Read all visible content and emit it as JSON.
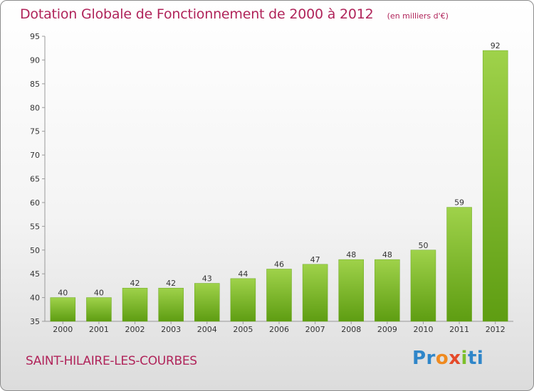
{
  "header": {
    "title": "Dotation Globale de Fonctionnement de 2000 à 2012",
    "subtitle": "(en milliers d'€)"
  },
  "footer": {
    "commune": "SAINT-HILAIRE-LES-COURBES",
    "logo_parts": [
      "Pr",
      "o",
      "x",
      "i",
      "ti"
    ]
  },
  "colors": {
    "bar_light": "#9fd24a",
    "bar_dark": "#5e9d12",
    "title": "#b0245a"
  },
  "chart_data": {
    "type": "bar",
    "title": "Dotation Globale de Fonctionnement de 2000 à 2012",
    "ylabel": "en milliers d'€",
    "categories": [
      "2000",
      "2001",
      "2002",
      "2003",
      "2004",
      "2005",
      "2006",
      "2007",
      "2008",
      "2009",
      "2010",
      "2011",
      "2012"
    ],
    "values": [
      40,
      40,
      42,
      42,
      43,
      44,
      46,
      47,
      48,
      48,
      50,
      59,
      92
    ],
    "ylim": [
      35,
      95
    ],
    "yticks": [
      35,
      40,
      45,
      50,
      55,
      60,
      65,
      70,
      75,
      80,
      85,
      90,
      95
    ],
    "grid": false
  }
}
